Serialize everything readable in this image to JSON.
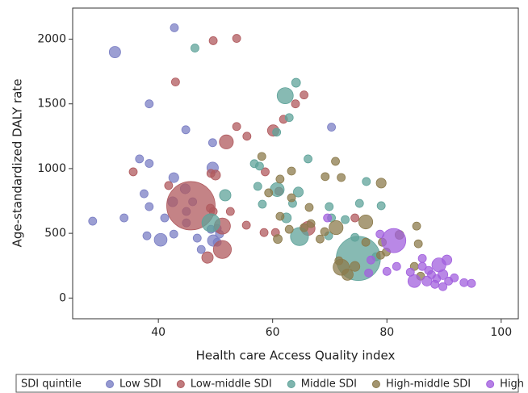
{
  "chart_data": {
    "type": "bubble",
    "x_label": "Health care Access Quality index",
    "y_label": "Age-standardized DALY rate",
    "legend_title": "SDI quintile",
    "legend_position": "bottom",
    "xlim": [
      25,
      103
    ],
    "xticks": [
      40,
      60,
      80,
      100
    ],
    "ylim": [
      -160,
      2240
    ],
    "yticks": [
      0,
      500,
      1000,
      1500,
      2000
    ],
    "series": [
      {
        "name": "Low SDI",
        "color": "#7b7fc4",
        "x": [
          42.8,
          32.4,
          38.4,
          44.8,
          49.5,
          70.3,
          36.7,
          38.4,
          49.5,
          42.7,
          37.5,
          42.5,
          44.7,
          46,
          38.4,
          34,
          28.5,
          44.9,
          41.1,
          38,
          40.4,
          42.7,
          46.8,
          49.2,
          50.3,
          47.5,
          50.3,
          49.6,
          50.7,
          44.9
        ],
        "values": [
          2088,
          1900,
          1500,
          1300,
          1200,
          1320,
          1075,
          1040,
          1006,
          930,
          806,
          744,
          844,
          744,
          706,
          619,
          594,
          669,
          619,
          481,
          450,
          494,
          463,
          531,
          538,
          375,
          431,
          444,
          494,
          581
        ],
        "sizes": [
          1,
          2,
          1,
          1,
          1,
          1,
          1,
          1,
          2,
          1.5,
          1,
          1.5,
          1.5,
          1,
          1,
          1,
          1,
          1,
          1,
          1,
          2.5,
          1,
          1,
          1,
          1,
          1,
          1,
          2,
          1,
          1
        ]
      },
      {
        "name": "Low-middle SDI",
        "color": "#b05a5e",
        "x": [
          49.6,
          53.7,
          43,
          53.7,
          55.5,
          60.1,
          61.9,
          64,
          65.5,
          51.9,
          35.6,
          50,
          49.2,
          58.7,
          45.7,
          41.8,
          61.1,
          49.1,
          52.6,
          49.6,
          51.2,
          51.2,
          48.6,
          55.4,
          58.5,
          60.5,
          66.2,
          74.4
        ],
        "values": [
          1988,
          2006,
          1669,
          1325,
          1250,
          1294,
          1381,
          1500,
          1569,
          1206,
          975,
          950,
          963,
          975,
          713,
          869,
          825,
          694,
          669,
          669,
          556,
          375,
          313,
          563,
          506,
          506,
          538,
          619
        ],
        "sizes": [
          1,
          1,
          1,
          1,
          1,
          2,
          1,
          1,
          1,
          3,
          1,
          1.5,
          1,
          1,
          36,
          1,
          1,
          1,
          1,
          1,
          4,
          5,
          2,
          1,
          1,
          1,
          3,
          1
        ]
      },
      {
        "name": "Middle SDI",
        "color": "#5fa39a",
        "x": [
          46.4,
          64.1,
          62.2,
          62.9,
          60.7,
          66.2,
          56.8,
          57.7,
          60.8,
          64.5,
          51.7,
          57.4,
          58.2,
          63.5,
          62.4,
          49.2,
          69.9,
          76.4,
          79,
          75.2,
          64.7,
          70.3,
          72.7,
          69.8,
          75,
          78.1,
          74.4
        ],
        "values": [
          1931,
          1663,
          1563,
          1394,
          1281,
          1075,
          1038,
          1019,
          838,
          819,
          794,
          863,
          725,
          731,
          619,
          581,
          706,
          900,
          713,
          731,
          475,
          619,
          606,
          481,
          306,
          319,
          469
        ],
        "sizes": [
          1,
          1.2,
          4,
          1,
          1,
          1,
          1,
          1,
          3,
          1.5,
          2,
          1,
          1,
          1,
          1.5,
          5,
          1,
          1,
          1,
          1,
          5,
          1,
          1,
          1,
          30,
          1,
          1
        ]
      },
      {
        "name": "High-middle SDI",
        "color": "#8c7b4c",
        "x": [
          58.1,
          61.3,
          63.3,
          71,
          69.2,
          72,
          79,
          59.3,
          63.3,
          66.4,
          61.3,
          66.7,
          62.9,
          65.5,
          60.9,
          69.1,
          71.1,
          68.3,
          76.3,
          71.6,
          72,
          73.1,
          74.4,
          76.3,
          78.9,
          79.9,
          79.2,
          82.2,
          85.2,
          85.5,
          84.8,
          85.9
        ],
        "values": [
          1094,
          919,
          981,
          1056,
          938,
          931,
          888,
          813,
          775,
          700,
          631,
          575,
          531,
          544,
          456,
          513,
          544,
          456,
          588,
          288,
          238,
          181,
          244,
          431,
          331,
          356,
          431,
          488,
          556,
          419,
          244,
          169
        ],
        "sizes": [
          1,
          1,
          1,
          1,
          1,
          1,
          1.5,
          1,
          1,
          1,
          1,
          1,
          1,
          1,
          1.2,
          1,
          3,
          1,
          3,
          1,
          4,
          2,
          1.5,
          1,
          1,
          1,
          1,
          1.2,
          1,
          1,
          1,
          1
        ]
      },
      {
        "name": "High SDI",
        "color": "#a260de",
        "x": [
          81.2,
          69.6,
          78.8,
          77.2,
          76.8,
          80,
          81.7,
          84.8,
          86.2,
          87.3,
          89.1,
          89.8,
          88.7,
          90.8,
          86.2,
          91.8,
          93.5,
          94.8,
          87,
          88.4,
          89.8,
          90.5,
          84.1,
          87.8
        ],
        "values": [
          444,
          619,
          494,
          294,
          194,
          206,
          244,
          131,
          244,
          213,
          256,
          181,
          150,
          131,
          306,
          156,
          119,
          113,
          131,
          106,
          88,
          294,
          200,
          181
        ],
        "sizes": [
          9,
          1,
          1,
          1,
          1,
          1,
          1,
          2.5,
          1,
          1,
          3,
          1.5,
          1,
          1,
          1,
          1,
          1,
          1,
          1.5,
          1,
          1,
          1.5,
          1,
          1
        ]
      }
    ]
  }
}
